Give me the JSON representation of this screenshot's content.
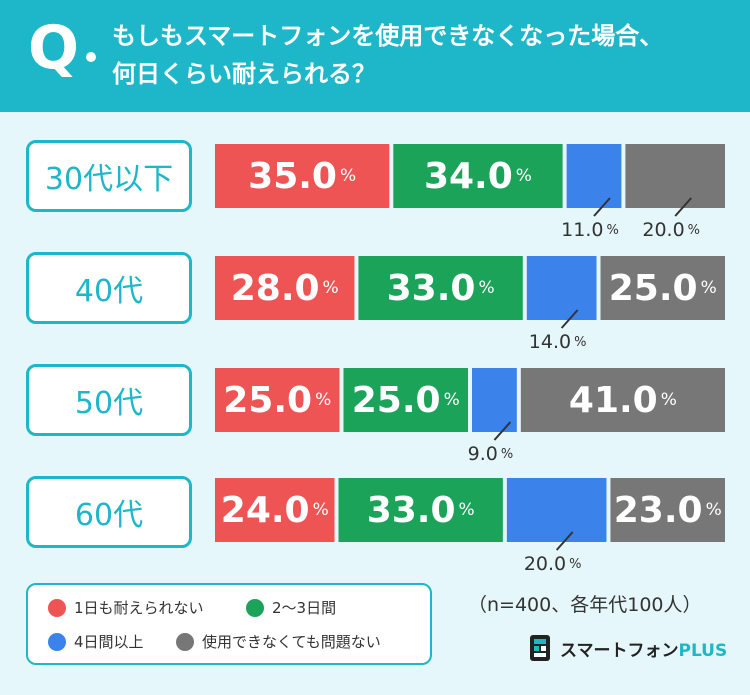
{
  "question": {
    "mark": "Q",
    "line1": "もしもスマートフォンを使用できなくなった場合、",
    "line2": "何日くらい耐えられる？"
  },
  "colors": {
    "header": "#1eb7c9",
    "background": "#e6f7fb",
    "series": [
      "#ef5454",
      "#1ba35a",
      "#3b82ea",
      "#777777"
    ]
  },
  "chart_data": {
    "type": "bar",
    "orientation": "horizontal-stacked",
    "unit": "%",
    "categories": [
      "30代以下",
      "40代",
      "50代",
      "60代"
    ],
    "series": [
      {
        "name": "1日も耐えられない",
        "values": [
          35.0,
          28.0,
          25.0,
          24.0
        ]
      },
      {
        "name": "2〜3日間",
        "values": [
          34.0,
          33.0,
          25.0,
          33.0
        ]
      },
      {
        "name": "4日間以上",
        "values": [
          11.0,
          14.0,
          9.0,
          20.0
        ]
      },
      {
        "name": "使用できなくても問題ない",
        "values": [
          20.0,
          25.0,
          41.0,
          23.0
        ]
      }
    ],
    "value_labels": [
      [
        "35.0",
        "34.0",
        "11.0",
        "20.0"
      ],
      [
        "28.0",
        "33.0",
        "14.0",
        "25.0"
      ],
      [
        "25.0",
        "25.0",
        "9.0",
        "41.0"
      ],
      [
        "24.0",
        "33.0",
        "20.0",
        "23.0"
      ]
    ],
    "legend_placement": "bottom-left"
  },
  "note": "（n=400、各年代100人）",
  "brand": {
    "name": "スマートフォン",
    "suffix": "PLUS"
  }
}
